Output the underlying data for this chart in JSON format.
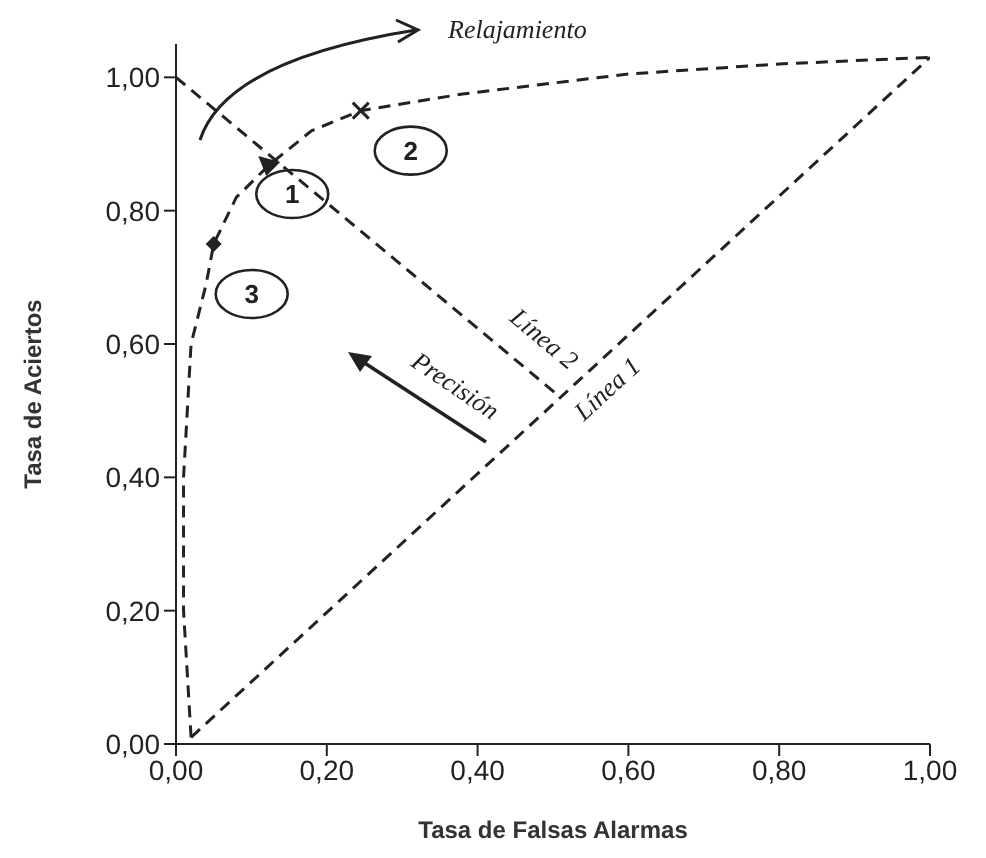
{
  "chart_data": {
    "type": "line",
    "xlabel": "Tasa de Falsas Alarmas",
    "ylabel": "Tasa de Aciertos",
    "xlim": [
      0,
      1
    ],
    "ylim": [
      0,
      1.05
    ],
    "xticks": [
      {
        "value": 0,
        "label": "0,00"
      },
      {
        "value": 0.2,
        "label": "0,20"
      },
      {
        "value": 0.4,
        "label": "0,40"
      },
      {
        "value": 0.6,
        "label": "0,60"
      },
      {
        "value": 0.8,
        "label": "0,80"
      },
      {
        "value": 1,
        "label": "1,00"
      }
    ],
    "yticks": [
      {
        "value": 0,
        "label": "0,00"
      },
      {
        "value": 0.2,
        "label": "0,20"
      },
      {
        "value": 0.4,
        "label": "0,40"
      },
      {
        "value": 0.6,
        "label": "0,60"
      },
      {
        "value": 0.8,
        "label": "0,80"
      },
      {
        "value": 1,
        "label": "1,00"
      }
    ],
    "line_style": "dashed",
    "series": [
      {
        "color": "#222222",
        "marker": "none",
        "x": [
          0.02,
          0.01,
          0.01,
          0.02,
          0.04,
          0.05,
          0.08,
          0.125,
          0.18,
          0.245,
          0.38,
          0.6,
          0.8,
          1.0
        ],
        "values": [
          0.01,
          0.2,
          0.4,
          0.6,
          0.69,
          0.75,
          0.82,
          0.87,
          0.92,
          0.95,
          0.975,
          1.005,
          1.02,
          1.03
        ]
      },
      {
        "name": "Línea 1",
        "color": "#222222",
        "marker": "none",
        "x": [
          0.02,
          1.0
        ],
        "values": [
          0.01,
          1.03
        ]
      },
      {
        "name": "Línea 2",
        "color": "#222222",
        "marker": "none",
        "x": [
          0,
          0.51
        ],
        "values": [
          1.0,
          0.52
        ]
      },
      {
        "name": "1",
        "type": "scatter",
        "color": "#222222",
        "marker": "triangle",
        "x": [
          0.125
        ],
        "values": [
          0.87
        ]
      },
      {
        "name": "2",
        "type": "scatter",
        "color": "#222222",
        "marker": "cross",
        "x": [
          0.245
        ],
        "values": [
          0.95
        ]
      },
      {
        "name": "3",
        "type": "scatter",
        "color": "#222222",
        "marker": "diamond",
        "x": [
          0.05
        ],
        "values": [
          0.75
        ]
      }
    ],
    "annotations": [
      "Relajamiento",
      "Precisión"
    ]
  }
}
